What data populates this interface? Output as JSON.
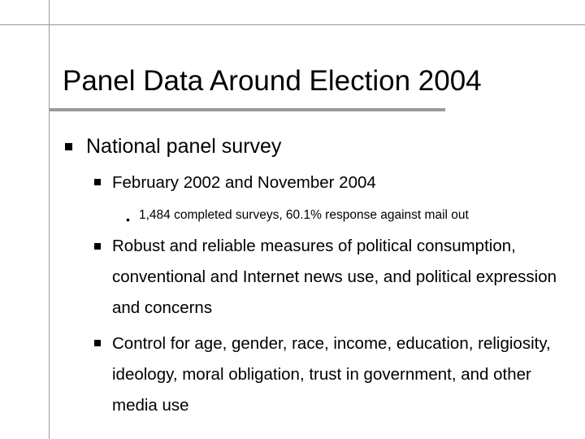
{
  "title": "Panel Data Around Election 2004",
  "bullets": {
    "level1": "National panel survey",
    "level2_a": "February 2002 and November 2004",
    "level3_a": "1,484 completed surveys, 60.1% response against mail out",
    "level2_b": "Robust and reliable measures of political consumption, conventional and Internet news use, and political expression and concerns",
    "level2_c": "Control for age, gender, race, income, education, religiosity, ideology, moral obligation, trust in government, and other media use"
  },
  "colors": {
    "frame": "#9a9a9a",
    "text": "#000000",
    "background": "#ffffff"
  },
  "icons": {
    "level1_bullet": "square-bullet-icon",
    "level2_bullet": "square-bullet-icon",
    "level3_bullet": "dot-bullet-icon"
  }
}
